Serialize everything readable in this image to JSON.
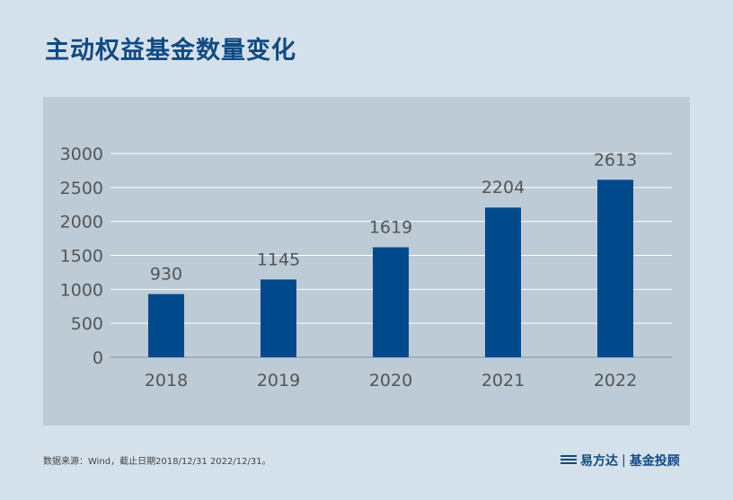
{
  "title": "主动权益基金数量变化",
  "source": "数据来源：Wind，截止日期2018/12/31 2022/12/31。",
  "logo": {
    "name": "易方达",
    "divider": "|",
    "slogan": "基金投顾"
  },
  "colors": {
    "bar": "#004a8c",
    "title": "#0e4a86"
  },
  "chart_data": {
    "type": "bar",
    "title": "主动权益基金数量变化",
    "categories": [
      "2018",
      "2019",
      "2020",
      "2021",
      "2022"
    ],
    "values": [
      930,
      1145,
      1619,
      2204,
      2613
    ],
    "ylim": [
      0,
      3000
    ],
    "yticks": [
      0,
      500,
      1000,
      1500,
      2000,
      2500,
      3000
    ],
    "grid": true,
    "xlabel": "",
    "ylabel": ""
  }
}
